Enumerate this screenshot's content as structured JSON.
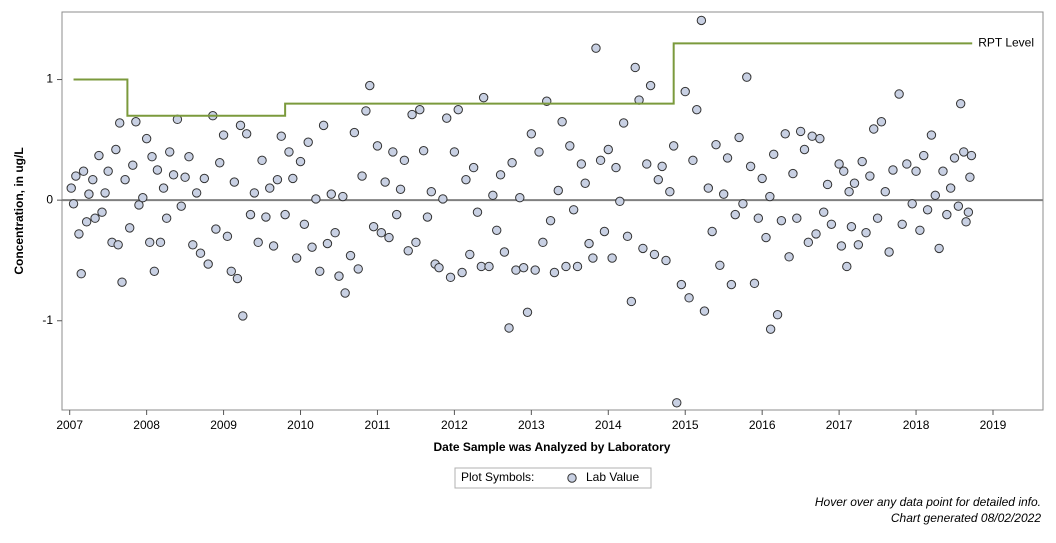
{
  "chart_data": {
    "type": "scatter",
    "x_label": "Date Sample was Analyzed by Laboratory",
    "y_label": "Concentration, in ug/L",
    "xlim": [
      2006.9,
      2019.65
    ],
    "ylim": [
      -1.74,
      1.56
    ],
    "xticks": [
      2007,
      2008,
      2009,
      2010,
      2011,
      2012,
      2013,
      2014,
      2015,
      2016,
      2017,
      2018,
      2019
    ],
    "yticks": [
      -1,
      0,
      1
    ],
    "hline": 0,
    "legend_title": "Plot Symbols:",
    "notes": [
      "Hover over any data point for detailed info.",
      "Chart generated 08/02/2022"
    ],
    "series": [
      {
        "name": "Lab Value",
        "type": "scatter",
        "color": "#c8d0e3",
        "x": [
          2007.02,
          2007.05,
          2007.08,
          2007.12,
          2007.15,
          2007.18,
          2007.22,
          2007.25,
          2007.3,
          2007.33,
          2007.38,
          2007.42,
          2007.46,
          2007.5,
          2007.55,
          2007.6,
          2007.63,
          2007.65,
          2007.68,
          2007.72,
          2007.78,
          2007.82,
          2007.86,
          2007.9,
          2007.95,
          2008.0,
          2008.04,
          2008.07,
          2008.1,
          2008.14,
          2008.18,
          2008.22,
          2008.26,
          2008.3,
          2008.35,
          2008.4,
          2008.45,
          2008.5,
          2008.55,
          2008.6,
          2008.65,
          2008.7,
          2008.75,
          2008.8,
          2008.86,
          2008.9,
          2008.95,
          2009.0,
          2009.05,
          2009.1,
          2009.14,
          2009.18,
          2009.22,
          2009.25,
          2009.3,
          2009.35,
          2009.4,
          2009.45,
          2009.5,
          2009.55,
          2009.6,
          2009.65,
          2009.7,
          2009.75,
          2009.8,
          2009.85,
          2009.9,
          2009.95,
          2010.0,
          2010.05,
          2010.1,
          2010.15,
          2010.2,
          2010.25,
          2010.3,
          2010.35,
          2010.4,
          2010.45,
          2010.5,
          2010.55,
          2010.58,
          2010.65,
          2010.7,
          2010.75,
          2010.8,
          2010.85,
          2010.9,
          2010.95,
          2011.0,
          2011.05,
          2011.1,
          2011.15,
          2011.2,
          2011.25,
          2011.3,
          2011.35,
          2011.4,
          2011.45,
          2011.5,
          2011.55,
          2011.6,
          2011.65,
          2011.7,
          2011.75,
          2011.8,
          2011.85,
          2011.9,
          2011.95,
          2012.0,
          2012.05,
          2012.1,
          2012.15,
          2012.2,
          2012.25,
          2012.3,
          2012.35,
          2012.38,
          2012.45,
          2012.5,
          2012.55,
          2012.6,
          2012.65,
          2012.71,
          2012.75,
          2012.8,
          2012.85,
          2012.9,
          2012.95,
          2013.0,
          2013.05,
          2013.1,
          2013.15,
          2013.2,
          2013.25,
          2013.3,
          2013.35,
          2013.4,
          2013.45,
          2013.5,
          2013.55,
          2013.6,
          2013.65,
          2013.7,
          2013.75,
          2013.8,
          2013.84,
          2013.9,
          2013.95,
          2014.0,
          2014.05,
          2014.1,
          2014.15,
          2014.2,
          2014.25,
          2014.3,
          2014.35,
          2014.4,
          2014.45,
          2014.5,
          2014.55,
          2014.6,
          2014.65,
          2014.7,
          2014.75,
          2014.8,
          2014.85,
          2014.89,
          2014.95,
          2015.0,
          2015.05,
          2015.1,
          2015.15,
          2015.21,
          2015.25,
          2015.3,
          2015.35,
          2015.4,
          2015.45,
          2015.5,
          2015.55,
          2015.6,
          2015.65,
          2015.7,
          2015.75,
          2015.8,
          2015.85,
          2015.9,
          2015.95,
          2016.0,
          2016.05,
          2016.1,
          2016.11,
          2016.15,
          2016.2,
          2016.25,
          2016.3,
          2016.35,
          2016.4,
          2016.45,
          2016.5,
          2016.55,
          2016.6,
          2016.65,
          2016.7,
          2016.75,
          2016.8,
          2016.85,
          2016.9,
          2017.0,
          2017.03,
          2017.06,
          2017.1,
          2017.13,
          2017.16,
          2017.2,
          2017.25,
          2017.3,
          2017.35,
          2017.4,
          2017.45,
          2017.5,
          2017.55,
          2017.6,
          2017.65,
          2017.7,
          2017.78,
          2017.82,
          2017.88,
          2017.95,
          2018.0,
          2018.05,
          2018.1,
          2018.15,
          2018.2,
          2018.25,
          2018.3,
          2018.35,
          2018.4,
          2018.45,
          2018.5,
          2018.55,
          2018.58,
          2018.62,
          2018.65,
          2018.7,
          2018.72,
          2018.68
        ],
        "values": [
          0.1,
          -0.03,
          0.2,
          -0.28,
          -0.61,
          0.24,
          -0.18,
          0.05,
          0.17,
          -0.15,
          0.37,
          -0.1,
          0.06,
          0.24,
          -0.35,
          0.42,
          -0.37,
          0.64,
          -0.68,
          0.17,
          -0.23,
          0.29,
          0.65,
          -0.04,
          0.02,
          0.51,
          -0.35,
          0.36,
          -0.59,
          0.25,
          -0.35,
          0.1,
          -0.15,
          0.4,
          0.21,
          0.67,
          -0.05,
          0.19,
          0.36,
          -0.37,
          0.06,
          -0.44,
          0.18,
          -0.53,
          0.7,
          -0.24,
          0.31,
          0.54,
          -0.3,
          -0.59,
          0.15,
          -0.65,
          0.62,
          -0.96,
          0.55,
          -0.12,
          0.06,
          -0.35,
          0.33,
          -0.14,
          0.1,
          -0.38,
          0.17,
          0.53,
          -0.12,
          0.4,
          0.18,
          -0.48,
          0.32,
          -0.2,
          0.48,
          -0.39,
          0.01,
          -0.59,
          0.62,
          -0.36,
          0.05,
          -0.27,
          -0.63,
          0.03,
          -0.77,
          -0.46,
          0.56,
          -0.57,
          0.2,
          0.74,
          0.95,
          -0.22,
          0.45,
          -0.27,
          0.15,
          -0.31,
          0.4,
          -0.12,
          0.09,
          0.33,
          -0.42,
          0.71,
          -0.35,
          0.75,
          0.41,
          -0.14,
          0.07,
          -0.53,
          -0.56,
          0.01,
          0.68,
          -0.64,
          0.4,
          0.75,
          -0.6,
          0.17,
          -0.45,
          0.27,
          -0.1,
          -0.55,
          0.85,
          -0.55,
          0.04,
          -0.25,
          0.21,
          -0.43,
          -1.06,
          0.31,
          -0.58,
          0.02,
          -0.56,
          -0.93,
          0.55,
          -0.58,
          0.4,
          -0.35,
          0.82,
          -0.17,
          -0.6,
          0.08,
          0.65,
          -0.55,
          0.45,
          -0.08,
          -0.55,
          0.3,
          0.14,
          -0.36,
          -0.48,
          1.26,
          0.33,
          -0.26,
          0.42,
          -0.48,
          0.27,
          -0.01,
          0.64,
          -0.3,
          -0.84,
          1.1,
          0.83,
          -0.4,
          0.3,
          0.95,
          -0.45,
          0.17,
          0.28,
          -0.5,
          0.07,
          0.45,
          -1.68,
          -0.7,
          0.9,
          -0.81,
          0.33,
          0.75,
          1.49,
          -0.92,
          0.1,
          -0.26,
          0.46,
          -0.54,
          0.05,
          0.35,
          -0.7,
          -0.12,
          0.52,
          -0.03,
          1.02,
          0.28,
          -0.69,
          -0.15,
          0.18,
          -0.31,
          0.03,
          -1.07,
          0.38,
          -0.95,
          -0.17,
          0.55,
          -0.47,
          0.22,
          -0.15,
          0.57,
          0.42,
          -0.35,
          0.53,
          -0.28,
          0.51,
          -0.1,
          0.13,
          -0.2,
          0.3,
          -0.38,
          0.24,
          -0.55,
          0.07,
          -0.22,
          0.14,
          -0.37,
          0.32,
          -0.27,
          0.2,
          0.59,
          -0.15,
          0.65,
          0.07,
          -0.43,
          0.25,
          0.88,
          -0.2,
          0.3,
          -0.03,
          0.24,
          -0.25,
          0.37,
          -0.08,
          0.54,
          0.04,
          -0.4,
          0.24,
          -0.12,
          0.1,
          0.35,
          -0.05,
          0.8,
          0.4,
          -0.18,
          0.19,
          0.37,
          -0.1
        ]
      },
      {
        "name": "RPT Level",
        "type": "line",
        "color": "#7b9a3c",
        "x": [
          2007.05,
          2007.75,
          2007.75,
          2009.8,
          2009.8,
          2014.85,
          2014.85,
          2018.73
        ],
        "values": [
          1,
          1,
          0.7,
          0.7,
          0.8,
          0.8,
          1.3,
          1.3
        ]
      }
    ]
  }
}
